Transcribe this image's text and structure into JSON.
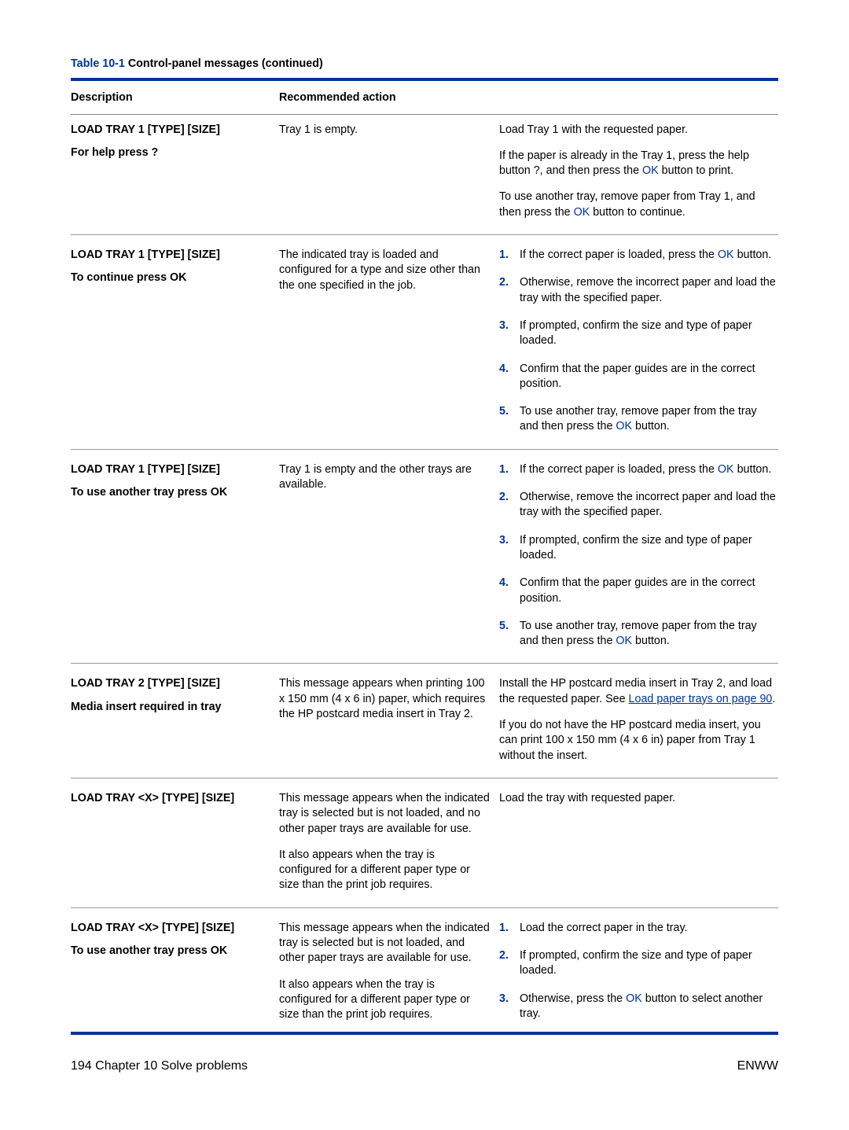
{
  "colors": {
    "accent": "#003399",
    "rule": "#999999"
  },
  "caption": {
    "prefix": "Table 10-1",
    "suffix": "Control-panel messages (continued)"
  },
  "headers": {
    "c1": "Description",
    "c2": "Recommended action"
  },
  "ok_label": "OK",
  "rows": {
    "r1": {
      "d1": "LOAD TRAY 1 [TYPE] [SIZE]",
      "d2": "For help press ?",
      "mid": "Tray 1 is empty.",
      "p1": "Load Tray 1 with the requested paper.",
      "p2a": "If the paper is already in the Tray 1, press the help button ?, and then press the ",
      "p2b": " button to print.",
      "p3a": "To use another tray, remove paper from Tray 1, and then press the ",
      "p3b": " button to continue."
    },
    "r2": {
      "d1": "LOAD TRAY 1 [TYPE] [SIZE]",
      "d2": "To continue press OK",
      "mid": "The indicated tray is loaded and configured for a type and size other than the one specified in the job.",
      "l1a": "If the correct paper is loaded, press the ",
      "l1b": " button.",
      "l2": "Otherwise, remove the incorrect paper and load the tray with the specified paper.",
      "l3": "If prompted, confirm the size and type of paper loaded.",
      "l4": "Confirm that the paper guides are in the correct position.",
      "l5a": "To use another tray, remove paper from the tray and then press the ",
      "l5b": " button."
    },
    "r3": {
      "d1": "LOAD TRAY 1 [TYPE] [SIZE]",
      "d2": "To use another tray press OK",
      "mid": "Tray 1 is empty and the other trays are available."
    },
    "r4": {
      "d1": "LOAD TRAY 2 [TYPE] [SIZE]",
      "d2": "Media insert required in tray",
      "mid": "This message appears when printing 100 x 150 mm (4 x 6 in) paper, which requires the HP postcard media insert in Tray 2.",
      "p1a": "Install the HP postcard media insert in Tray 2, and load the requested paper. See ",
      "link": "Load paper trays on page 90",
      "p1b": ".",
      "p2": "If you do not have the HP postcard media insert, you can print 100 x 150 mm (4 x 6 in) paper from Tray 1 without the insert."
    },
    "r5": {
      "d1": "LOAD TRAY <X> [TYPE] [SIZE]",
      "mid1": "This message appears when the indicated tray is selected but is not loaded, and no other paper trays are available for use.",
      "mid2": "It also appears when the tray is configured for a different paper type or size than the print job requires.",
      "act": "Load the tray with requested paper."
    },
    "r6": {
      "d1": "LOAD TRAY <X> [TYPE] [SIZE]",
      "d2": "To use another tray press OK",
      "mid1": "This message appears when the indicated tray is selected but is not loaded, and other paper trays are available for use.",
      "mid2": "It also appears when the tray is configured for a different paper type or size than the print job requires.",
      "l1": "Load the correct paper in the tray.",
      "l2": "If prompted, confirm the size and type of paper loaded.",
      "l3a": "Otherwise, press the ",
      "l3b": " button to select another tray."
    }
  },
  "footer": {
    "left_page": "194",
    "left_chapter": "Chapter 10   Solve problems",
    "right": "ENWW"
  }
}
